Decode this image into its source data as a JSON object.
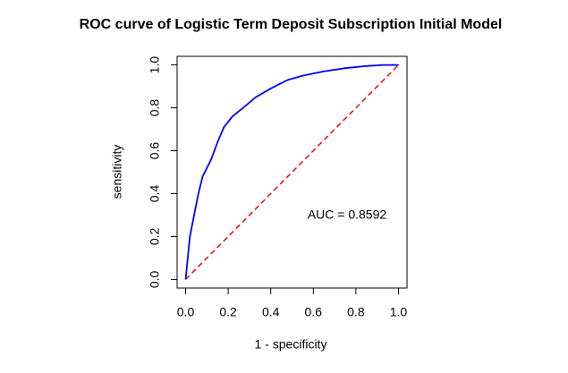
{
  "chart_data": {
    "type": "line",
    "title": "ROC curve of Logistic Term Deposit Subscription Initial Model",
    "x_label": "1 - specificity",
    "y_label": "sensitivity",
    "annotation": "AUC =  0.8592",
    "annotation_color": "#0000ff",
    "x": [
      0,
      0.01,
      0.02,
      0.04,
      0.06,
      0.08,
      0.12,
      0.15,
      0.18,
      0.22,
      0.27,
      0.33,
      0.4,
      0.48,
      0.55,
      0.65,
      0.75,
      0.85,
      0.93,
      1
    ],
    "values": [
      0,
      0.1,
      0.2,
      0.3,
      0.4,
      0.48,
      0.56,
      0.64,
      0.71,
      0.76,
      0.8,
      0.85,
      0.89,
      0.93,
      0.95,
      0.97,
      0.985,
      0.995,
      1,
      1
    ],
    "color": "#0000ff",
    "diagonal": {
      "x": [
        0,
        1
      ],
      "y": [
        0,
        1
      ],
      "color": "#ff0000"
    },
    "xlim": [
      -0.04,
      1.04
    ],
    "ylim": [
      -0.04,
      1.04
    ],
    "xticks": [
      {
        "value": 0,
        "label": "0.0"
      },
      0.2,
      0.4,
      0.6,
      0.8,
      {
        "value": 1,
        "label": "1.0"
      }
    ],
    "yticks": [
      {
        "value": 0,
        "label": "0.0"
      },
      0.2,
      0.4,
      0.6,
      0.8,
      {
        "value": 1,
        "label": "1.0"
      }
    ],
    "grid": false
  }
}
